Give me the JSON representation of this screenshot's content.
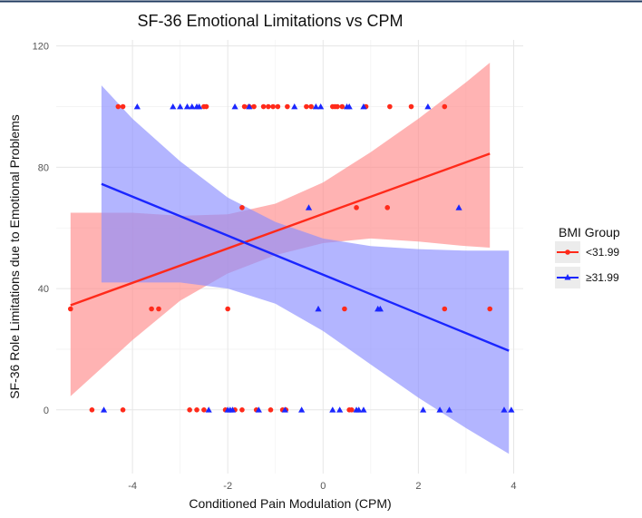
{
  "chart_data": {
    "type": "scatter",
    "title": "SF-36 Emotional Limitations vs CPM",
    "xlabel": "Conditioned Pain Modulation (CPM)",
    "ylabel": "SF-36 Role Limitations due to Emotional Problems",
    "xlim": [
      -5.6,
      4.2
    ],
    "ylim": [
      -21,
      122
    ],
    "x_ticks": [
      -4,
      -2,
      0,
      2,
      4
    ],
    "y_ticks": [
      0,
      40,
      80,
      120
    ],
    "x_tick_labels": [
      "-4",
      "-2",
      "0",
      "2",
      "4"
    ],
    "y_tick_labels": [
      "0",
      "40",
      "80",
      "120"
    ],
    "grid": true,
    "legend": {
      "title": "BMI Group",
      "position": "right"
    },
    "series": [
      {
        "name": "<31.99",
        "color": "#ff2a1a",
        "band_color": "#ff8a8a",
        "marker": "circle",
        "points": [
          [
            -4.3,
            100
          ],
          [
            -4.2,
            100
          ],
          [
            -2.5,
            100
          ],
          [
            -2.45,
            100
          ],
          [
            -1.65,
            100
          ],
          [
            -1.55,
            100
          ],
          [
            -1.45,
            100
          ],
          [
            -1.25,
            100
          ],
          [
            -1.15,
            100
          ],
          [
            -1.05,
            100
          ],
          [
            -0.95,
            100
          ],
          [
            -0.75,
            100
          ],
          [
            -0.35,
            100
          ],
          [
            -0.25,
            100
          ],
          [
            0.2,
            100
          ],
          [
            0.25,
            100
          ],
          [
            0.3,
            100
          ],
          [
            0.4,
            100
          ],
          [
            0.9,
            100
          ],
          [
            1.4,
            100
          ],
          [
            1.85,
            100
          ],
          [
            2.55,
            100
          ],
          [
            -1.7,
            66.7
          ],
          [
            0.7,
            66.7
          ],
          [
            1.35,
            66.7
          ],
          [
            -5.3,
            33.3
          ],
          [
            -3.6,
            33.3
          ],
          [
            -3.45,
            33.3
          ],
          [
            -2.0,
            33.3
          ],
          [
            0.45,
            33.3
          ],
          [
            2.55,
            33.3
          ],
          [
            3.5,
            33.3
          ],
          [
            -4.85,
            0
          ],
          [
            -4.2,
            0
          ],
          [
            -2.8,
            0
          ],
          [
            -2.65,
            0
          ],
          [
            -2.5,
            0
          ],
          [
            -2.05,
            0
          ],
          [
            -1.85,
            0
          ],
          [
            -1.7,
            0
          ],
          [
            -1.4,
            0
          ],
          [
            -1.1,
            0
          ],
          [
            -0.85,
            0
          ],
          [
            -0.78,
            0
          ],
          [
            0.55,
            0
          ],
          [
            0.6,
            0
          ]
        ],
        "fit": {
          "x": [
            -5.3,
            3.5
          ],
          "y": [
            34.5,
            84.5
          ]
        },
        "ci_lower": {
          "x": [
            -5.3,
            -4.0,
            -3.0,
            -2.0,
            -1.0,
            0.0,
            1.0,
            2.0,
            3.0,
            3.5
          ],
          "y": [
            4.5,
            23.0,
            36.0,
            45.0,
            51.0,
            55.0,
            56.5,
            55.5,
            54.0,
            53.5
          ]
        },
        "ci_upper": {
          "x": [
            -5.3,
            -4.0,
            -3.0,
            -2.0,
            -1.0,
            0.0,
            1.0,
            2.0,
            3.0,
            3.5
          ],
          "y": [
            65.0,
            65.0,
            64.0,
            64.5,
            68.0,
            75.0,
            85.0,
            96.0,
            108.0,
            114.5
          ]
        }
      },
      {
        "name": "≥31.99",
        "color": "#1a26ff",
        "band_color": "#8a8eff",
        "marker": "triangle",
        "points": [
          [
            -3.9,
            100
          ],
          [
            -3.15,
            100
          ],
          [
            -3.0,
            100
          ],
          [
            -2.85,
            100
          ],
          [
            -2.75,
            100
          ],
          [
            -2.65,
            100
          ],
          [
            -2.6,
            100
          ],
          [
            -1.85,
            100
          ],
          [
            -1.55,
            100
          ],
          [
            -0.6,
            100
          ],
          [
            -0.15,
            100
          ],
          [
            -0.05,
            100
          ],
          [
            0.5,
            100
          ],
          [
            0.55,
            100
          ],
          [
            0.85,
            100
          ],
          [
            2.2,
            100
          ],
          [
            -0.3,
            66.7
          ],
          [
            2.85,
            66.7
          ],
          [
            -0.1,
            33.3
          ],
          [
            1.15,
            33.3
          ],
          [
            1.2,
            33.3
          ],
          [
            -4.6,
            0
          ],
          [
            -2.4,
            0
          ],
          [
            -2.0,
            0
          ],
          [
            -1.95,
            0
          ],
          [
            -1.9,
            0
          ],
          [
            -1.35,
            0
          ],
          [
            -0.8,
            0
          ],
          [
            -0.45,
            0
          ],
          [
            0.2,
            0
          ],
          [
            0.35,
            0
          ],
          [
            0.7,
            0
          ],
          [
            0.75,
            0
          ],
          [
            0.85,
            0
          ],
          [
            2.1,
            0
          ],
          [
            2.45,
            0
          ],
          [
            2.65,
            0
          ],
          [
            3.8,
            0
          ],
          [
            3.95,
            0
          ]
        ],
        "fit": {
          "x": [
            -4.65,
            3.9
          ],
          "y": [
            74.5,
            19.5
          ]
        },
        "ci_lower": {
          "x": [
            -4.65,
            -4.0,
            -3.0,
            -2.0,
            -1.0,
            0.0,
            1.0,
            2.0,
            3.0,
            3.9
          ],
          "y": [
            42.0,
            42.0,
            42.0,
            40.0,
            35.0,
            26.0,
            15.0,
            4.0,
            -6.0,
            -14.5
          ]
        },
        "ci_upper": {
          "x": [
            -4.65,
            -4.0,
            -3.0,
            -2.0,
            -1.0,
            0.0,
            1.0,
            2.0,
            3.0,
            3.9
          ],
          "y": [
            107.0,
            96.0,
            82.0,
            70.0,
            62.0,
            56.5,
            54.0,
            53.0,
            52.5,
            52.5
          ]
        }
      }
    ]
  }
}
